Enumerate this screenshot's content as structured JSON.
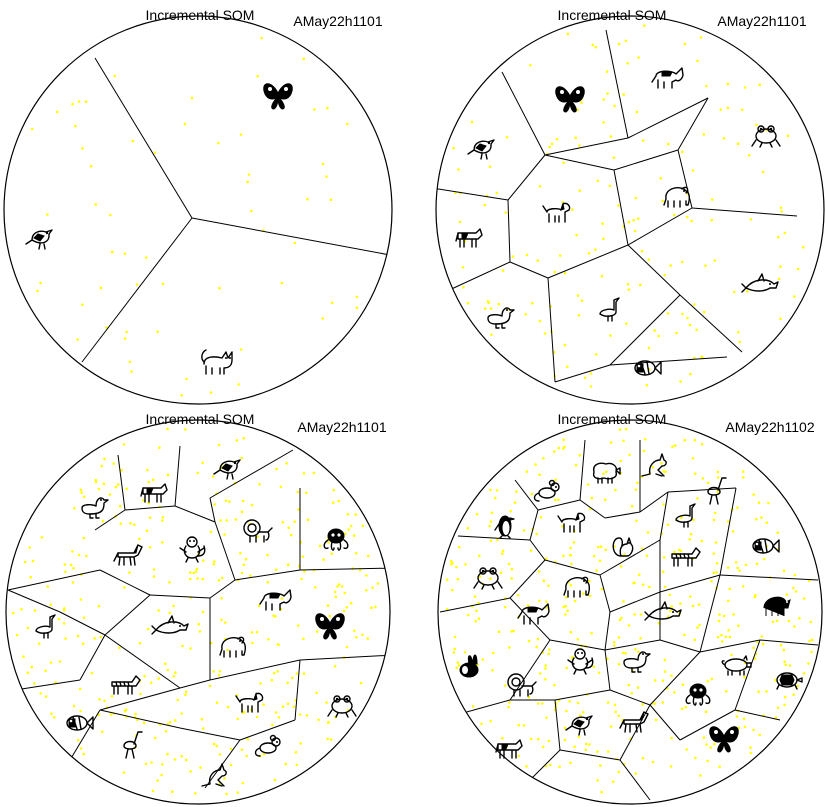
{
  "panels": [
    {
      "title": "Incremental SOM",
      "run_id": "AMay22h1101",
      "cells": [
        {
          "label": "butterfly",
          "icon": "butterfly-icon"
        },
        {
          "label": "bird",
          "icon": "bird-icon"
        },
        {
          "label": "cat",
          "icon": "cat-icon"
        }
      ]
    },
    {
      "title": "Incremental SOM",
      "run_id": "AMay22h1101",
      "cells": [
        {
          "label": "butterfly",
          "icon": "butterfly-icon"
        },
        {
          "label": "donkey",
          "icon": "donkey-icon"
        },
        {
          "label": "bird",
          "icon": "bird-icon"
        },
        {
          "label": "frog",
          "icon": "frog-icon"
        },
        {
          "label": "dog",
          "icon": "dog-icon"
        },
        {
          "label": "elephant",
          "icon": "elephant-icon"
        },
        {
          "label": "cow",
          "icon": "cow-icon"
        },
        {
          "label": "duck",
          "icon": "duck-icon"
        },
        {
          "label": "goose",
          "icon": "goose-icon"
        },
        {
          "label": "dolphin",
          "icon": "dolphin-icon"
        },
        {
          "label": "fish",
          "icon": "fish-icon"
        }
      ]
    },
    {
      "title": "Incremental SOM",
      "run_id": "AMay22h1101",
      "cells": [
        {
          "label": "bird",
          "icon": "bird-icon"
        },
        {
          "label": "cow",
          "icon": "cow-icon"
        },
        {
          "label": "duck",
          "icon": "duck-icon"
        },
        {
          "label": "horse",
          "icon": "horse-icon"
        },
        {
          "label": "monkey",
          "icon": "monkey-icon"
        },
        {
          "label": "lion",
          "icon": "lion-icon"
        },
        {
          "label": "octopus",
          "icon": "octopus-icon"
        },
        {
          "label": "goose",
          "icon": "goose-icon"
        },
        {
          "label": "dolphin",
          "icon": "dolphin-icon"
        },
        {
          "label": "donkey",
          "icon": "donkey-icon"
        },
        {
          "label": "butterfly",
          "icon": "butterfly-icon"
        },
        {
          "label": "zebra",
          "icon": "zebra-icon"
        },
        {
          "label": "elephant",
          "icon": "elephant-icon"
        },
        {
          "label": "dog",
          "icon": "dog-icon"
        },
        {
          "label": "frog",
          "icon": "frog-icon"
        },
        {
          "label": "fish",
          "icon": "fish-icon"
        },
        {
          "label": "ostrich",
          "icon": "ostrich-icon"
        },
        {
          "label": "mouse",
          "icon": "mouse-icon"
        },
        {
          "label": "kangaroo",
          "icon": "kangaroo-icon"
        }
      ]
    },
    {
      "title": "Incremental SOM",
      "run_id": "AMay22h1102",
      "cells": [
        {
          "label": "sheep",
          "icon": "sheep-icon"
        },
        {
          "label": "kangaroo",
          "icon": "kangaroo-icon"
        },
        {
          "label": "mouse",
          "icon": "mouse-icon"
        },
        {
          "label": "ostrich",
          "icon": "ostrich-icon"
        },
        {
          "label": "penguin",
          "icon": "penguin-icon"
        },
        {
          "label": "dog",
          "icon": "dog-icon"
        },
        {
          "label": "squirrel",
          "icon": "squirrel-icon"
        },
        {
          "label": "goose",
          "icon": "goose-icon"
        },
        {
          "label": "fish",
          "icon": "fish-icon"
        },
        {
          "label": "zebra",
          "icon": "zebra-icon"
        },
        {
          "label": "frog",
          "icon": "frog-icon"
        },
        {
          "label": "elephant",
          "icon": "elephant-icon"
        },
        {
          "label": "donkey",
          "icon": "donkey-icon"
        },
        {
          "label": "dolphin",
          "icon": "dolphin-icon"
        },
        {
          "label": "gorilla",
          "icon": "gorilla-icon"
        },
        {
          "label": "rabbit",
          "icon": "rabbit-icon"
        },
        {
          "label": "lion",
          "icon": "lion-icon"
        },
        {
          "label": "monkey",
          "icon": "monkey-icon"
        },
        {
          "label": "duck",
          "icon": "duck-icon"
        },
        {
          "label": "pig",
          "icon": "pig-icon"
        },
        {
          "label": "turtle",
          "icon": "turtle-icon"
        },
        {
          "label": "bird",
          "icon": "bird-icon"
        },
        {
          "label": "horse",
          "icon": "horse-icon"
        },
        {
          "label": "octopus",
          "icon": "octopus-icon"
        },
        {
          "label": "butterfly",
          "icon": "butterfly-icon"
        },
        {
          "label": "cow",
          "icon": "cow-icon"
        }
      ]
    }
  ],
  "colors": {
    "sample_dot": "#ffff00",
    "border": "#000000",
    "background": "#ffffff"
  }
}
